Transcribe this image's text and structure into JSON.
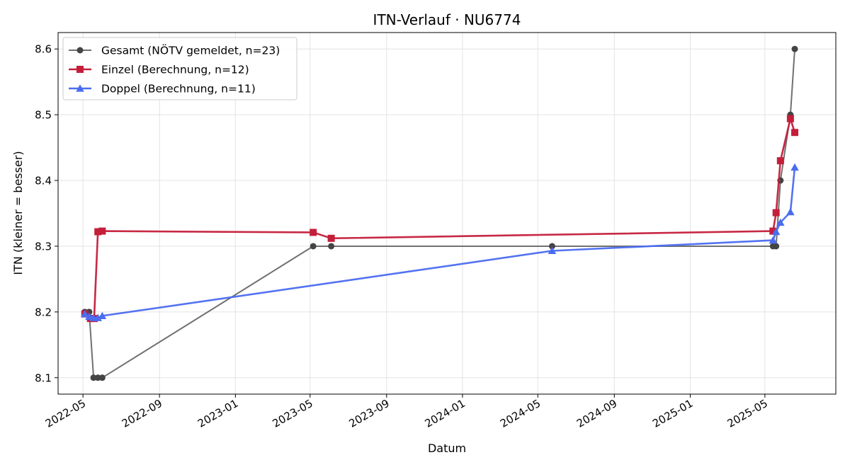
{
  "chart_data": {
    "type": "line",
    "title": "ITN-Verlauf · NU6774",
    "xlabel": "Datum",
    "ylabel": "ITN  (kleiner = besser)",
    "x_ticks": [
      "2022-05-01",
      "2022-09-01",
      "2023-01-01",
      "2023-05-01",
      "2023-09-01",
      "2024-01-01",
      "2024-05-01",
      "2024-09-01",
      "2025-01-01",
      "2025-05-01"
    ],
    "y_ticks": [
      8.1,
      8.2,
      8.3,
      8.4,
      8.5,
      8.6
    ],
    "xlim": [
      "2022-03-22",
      "2025-08-23"
    ],
    "ylim": [
      8.075,
      8.625
    ],
    "grid": true,
    "legend_position": "top-left",
    "series": [
      {
        "name": "Gesamt (NÖTV gemeldet, n=23)",
        "color": "#707070",
        "marker_color": "#444444",
        "marker": "circle",
        "x": [
          "2022-05-04",
          "2022-05-11",
          "2022-05-18",
          "2022-05-25",
          "2022-06-01",
          "2023-05-06",
          "2023-06-04",
          "2024-05-24",
          "2025-05-14",
          "2025-05-19",
          "2025-05-26",
          "2025-06-11",
          "2025-06-18"
        ],
        "y": [
          8.2,
          8.2,
          8.1,
          8.1,
          8.1,
          8.3,
          8.3,
          8.3,
          8.3,
          8.3,
          8.4,
          8.5,
          8.6
        ]
      },
      {
        "name": "Einzel (Berechnung, n=12)",
        "color": "#c41e3a",
        "marker": "square",
        "x": [
          "2022-05-04",
          "2022-05-13",
          "2022-05-19",
          "2022-05-25",
          "2022-06-01",
          "2023-05-06",
          "2023-06-04",
          "2025-05-14",
          "2025-05-19",
          "2025-05-26",
          "2025-06-11",
          "2025-06-18"
        ],
        "y": [
          8.197,
          8.19,
          8.19,
          8.322,
          8.323,
          8.321,
          8.312,
          8.323,
          8.351,
          8.43,
          8.494,
          8.473
        ]
      },
      {
        "name": "Doppel (Berechnung, n=11)",
        "color": "#4a6cf0",
        "marker": "triangle",
        "x": [
          "2022-05-04",
          "2022-05-11",
          "2022-05-18",
          "2022-05-25",
          "2022-06-01",
          "2024-05-24",
          "2025-05-14",
          "2025-05-19",
          "2025-05-26",
          "2025-06-11",
          "2025-06-18"
        ],
        "y": [
          8.197,
          8.193,
          8.191,
          8.191,
          8.194,
          8.293,
          8.309,
          8.322,
          8.336,
          8.352,
          8.42
        ]
      }
    ]
  }
}
